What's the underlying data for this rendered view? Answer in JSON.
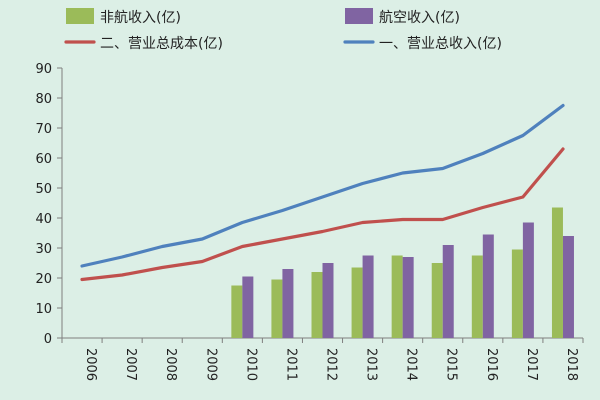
{
  "chart_data": {
    "type": "bar",
    "categories": [
      "2006",
      "2007",
      "2008",
      "2009",
      "2010",
      "2011",
      "2012",
      "2013",
      "2014",
      "2015",
      "2016",
      "2017",
      "2018"
    ],
    "bar_series": [
      {
        "name": "非航收入(亿)",
        "color": "#9bbb59",
        "values": [
          null,
          null,
          null,
          null,
          17.5,
          19.5,
          22,
          23.5,
          27.5,
          25,
          27.5,
          29.5,
          43.5
        ]
      },
      {
        "name": "航空收入(亿)",
        "color": "#8064a2",
        "values": [
          null,
          null,
          null,
          null,
          20.5,
          23,
          25,
          27.5,
          27,
          31,
          34.5,
          38.5,
          34
        ]
      }
    ],
    "line_series": [
      {
        "name": "二、营业总成本(亿)",
        "color": "#c0504d",
        "values": [
          19.5,
          21,
          23.5,
          25.5,
          30.5,
          33,
          35.5,
          38.5,
          39.5,
          39.5,
          43.5,
          47,
          63
        ]
      },
      {
        "name": "一、营业总收入(亿)",
        "color": "#4f81bd",
        "values": [
          24,
          27,
          30.5,
          33,
          38.5,
          42.5,
          47,
          51.5,
          55,
          56.5,
          61.5,
          67.5,
          77.5
        ]
      }
    ],
    "legend_order": [
      "非航收入(亿)",
      "航空收入(亿)",
      "二、营业总成本(亿)",
      "一、营业总收入(亿)"
    ],
    "yticks": [
      "0",
      "10",
      "20",
      "30",
      "40",
      "50",
      "60",
      "70",
      "80",
      "90"
    ],
    "ylim": [
      0,
      90
    ],
    "legend_position": "top",
    "grid": false
  }
}
